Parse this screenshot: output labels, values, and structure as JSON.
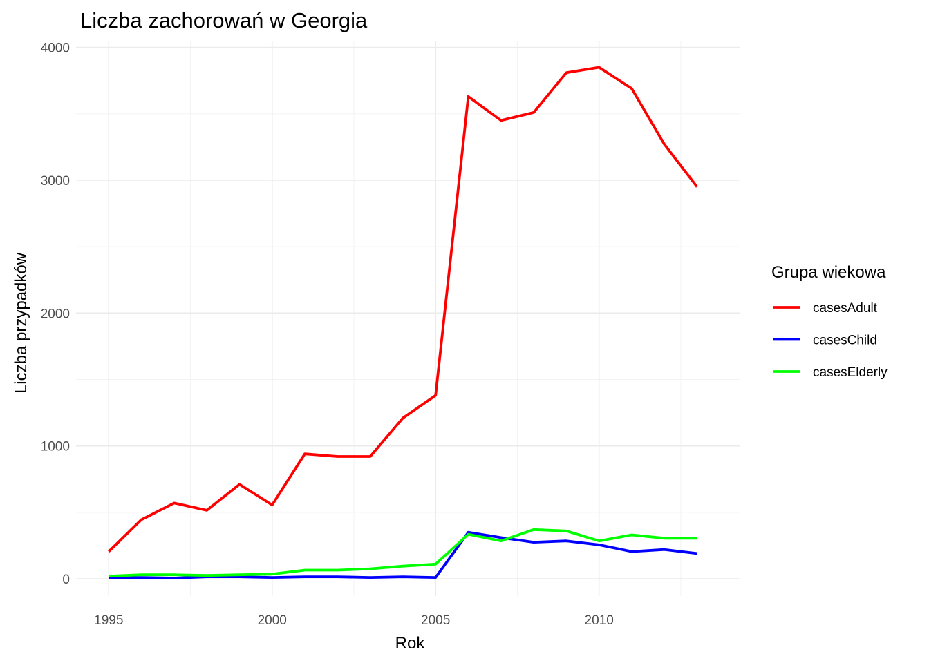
{
  "chart_data": {
    "type": "line",
    "title": "Liczba zachorowań w Georgia",
    "xlabel": "Rok",
    "ylabel": "Liczba przypadków",
    "xlim": [
      1994.0,
      2014.3
    ],
    "ylim": [
      -130,
      4050
    ],
    "x_ticks": [
      1995,
      2000,
      2005,
      2010
    ],
    "x_minor": [
      1997.5,
      2002.5,
      2007.5,
      2012.5
    ],
    "y_ticks": [
      0,
      1000,
      2000,
      3000,
      4000
    ],
    "y_minor": [
      500,
      1500,
      2500,
      3500
    ],
    "x_tick_labels": [
      "1995",
      "2000",
      "2005",
      "2010"
    ],
    "y_tick_labels": [
      "0",
      "1000",
      "2000",
      "3000",
      "4000"
    ],
    "grid": true,
    "x": [
      1995,
      1996,
      1997,
      1998,
      1999,
      2000,
      2001,
      2002,
      2003,
      2004,
      2005,
      2006,
      2007,
      2008,
      2009,
      2010,
      2011,
      2012,
      2013
    ],
    "legend": {
      "title": "Grupa wiekowa",
      "position": "right"
    },
    "series": [
      {
        "name": "casesAdult",
        "color": "#ff0000",
        "values": [
          205,
          445,
          570,
          515,
          710,
          555,
          940,
          920,
          920,
          1210,
          1380,
          3630,
          3450,
          3510,
          3810,
          3850,
          3690,
          3270,
          2950
        ]
      },
      {
        "name": "casesChild",
        "color": "#0000ff",
        "values": [
          5,
          10,
          5,
          15,
          15,
          10,
          15,
          15,
          10,
          15,
          10,
          350,
          310,
          275,
          285,
          255,
          205,
          220,
          190
        ]
      },
      {
        "name": "casesElderly",
        "color": "#00ff00",
        "values": [
          20,
          30,
          30,
          25,
          30,
          35,
          65,
          65,
          75,
          95,
          110,
          335,
          285,
          370,
          360,
          285,
          330,
          305,
          305
        ]
      }
    ]
  }
}
